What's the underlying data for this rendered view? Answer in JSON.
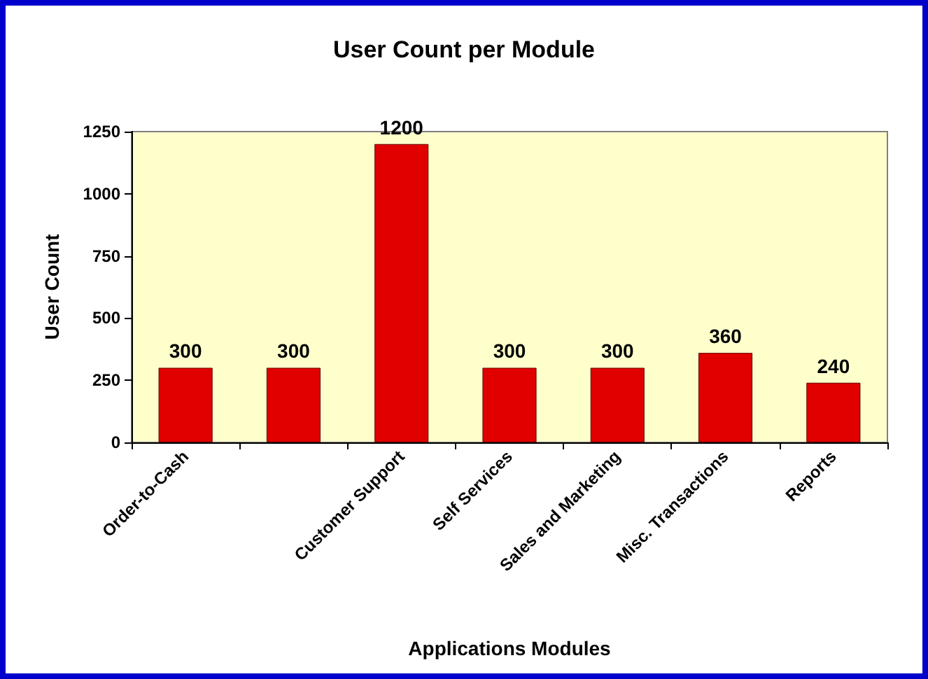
{
  "chart_data": {
    "type": "bar",
    "title": "User Count per Module",
    "xlabel": "Applications Modules",
    "ylabel": "User Count",
    "categories": [
      "Order-to-Cash",
      null,
      "Customer Support",
      "Self Services",
      "Sales and Marketing",
      "Misc. Transactions",
      "Reports"
    ],
    "values": [
      300,
      300,
      1200,
      300,
      300,
      360,
      240
    ],
    "color": "#e00000",
    "ylim": [
      0,
      1250
    ],
    "yticks": [
      0,
      250,
      500,
      750,
      1000,
      1250
    ],
    "data_labels": true,
    "grid": false
  }
}
